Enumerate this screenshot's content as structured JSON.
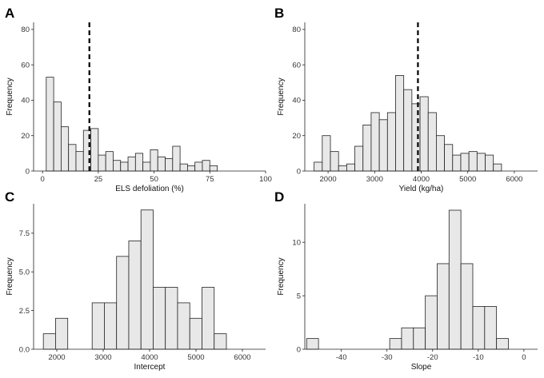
{
  "chart_data": [
    {
      "panel": "A",
      "type": "bar",
      "xlabel": "ELS defoliation (%)",
      "ylabel": "Frequency",
      "xlim": [
        -4,
        100
      ],
      "ylim": [
        0,
        84
      ],
      "xticks": [
        0,
        25,
        50,
        75,
        100
      ],
      "yticks": [
        0,
        20,
        40,
        60,
        80
      ],
      "bin_width": 3.333,
      "bin_start": 1.667,
      "values": [
        53,
        39,
        25,
        15,
        11,
        23,
        24,
        9,
        11,
        6,
        5,
        8,
        10,
        5,
        12,
        8,
        7,
        14,
        4,
        3,
        5,
        6,
        3
      ],
      "ref_line": 21
    },
    {
      "panel": "B",
      "type": "bar",
      "xlabel": "Yield (kg/ha)",
      "ylabel": "Frequency",
      "xlim": [
        1500,
        6500
      ],
      "ylim": [
        0,
        84
      ],
      "xticks": [
        2000,
        3000,
        4000,
        5000,
        6000
      ],
      "yticks": [
        0,
        20,
        40,
        60,
        80
      ],
      "bin_width": 175,
      "bin_start": 1700,
      "values": [
        5,
        20,
        11,
        3,
        4,
        14,
        26,
        33,
        29,
        33,
        54,
        46,
        38,
        42,
        33,
        20,
        15,
        9,
        10,
        11,
        10,
        9,
        4
      ],
      "ref_line": 3930
    },
    {
      "panel": "C",
      "type": "bar",
      "xlabel": "Intercept",
      "ylabel": "Frequency",
      "xlim": [
        1500,
        6500
      ],
      "ylim": [
        0,
        9.4
      ],
      "xticks": [
        2000,
        3000,
        4000,
        5000,
        6000
      ],
      "ytick_labels": [
        "0.0",
        "2.5",
        "5.0",
        "7.5"
      ],
      "yticks": [
        0,
        2.5,
        5,
        7.5
      ],
      "bin_width": 263,
      "bin_start": 1710,
      "values": [
        1,
        2,
        0,
        0,
        3,
        3,
        6,
        7,
        9,
        4,
        4,
        3,
        2,
        4,
        1
      ]
    },
    {
      "panel": "D",
      "type": "bar",
      "xlabel": "Slope",
      "ylabel": "Frequency",
      "xlim": [
        -48,
        3
      ],
      "ylim": [
        0,
        13.6
      ],
      "xticks": [
        -40,
        -30,
        -20,
        -10,
        0
      ],
      "ytick_labels": [
        "0",
        "5",
        "10"
      ],
      "yticks": [
        0,
        5,
        10
      ],
      "bin_width": 2.6,
      "bin_start": -47.6,
      "values": [
        1,
        0,
        0,
        0,
        0,
        0,
        0,
        1,
        2,
        2,
        5,
        8,
        13,
        8,
        4,
        4,
        1
      ]
    }
  ]
}
